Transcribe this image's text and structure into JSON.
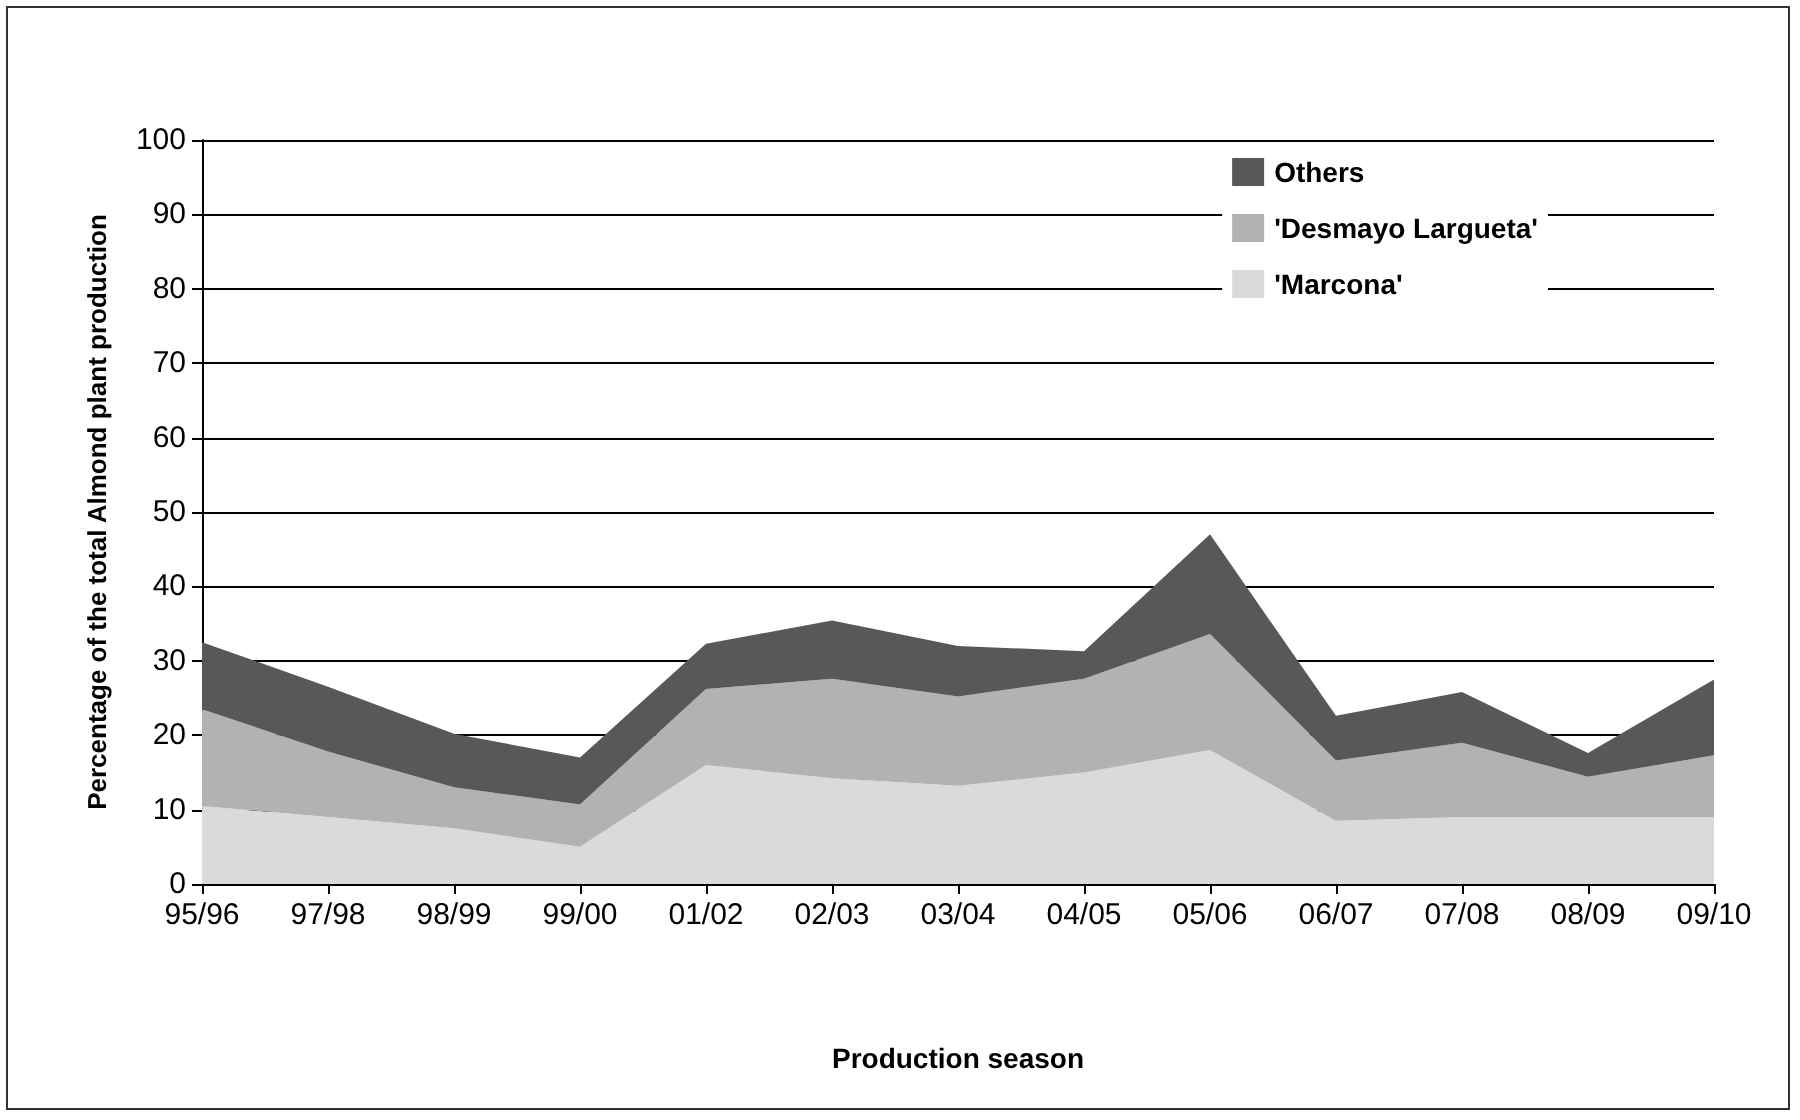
{
  "chart_data": {
    "type": "area",
    "stacked": true,
    "xlabel": "Production season",
    "ylabel": "Percentage of the total Almond plant production",
    "categories": [
      "95/96",
      "97/98",
      "98/99",
      "99/00",
      "01/02",
      "02/03",
      "03/04",
      "04/05",
      "05/06",
      "06/07",
      "07/08",
      "08/09",
      "09/10"
    ],
    "series": [
      {
        "name": "'Marcona'",
        "color": "#d9dadc",
        "values": [
          10.5,
          9,
          7.5,
          5,
          16,
          14.2,
          13.2,
          15,
          18,
          8.5,
          9,
          9,
          9
        ]
      },
      {
        "name": "'Desmayo Largueta'",
        "color": "#b1b2b4",
        "values": [
          13,
          8.8,
          5.5,
          5.7,
          10.2,
          13.4,
          12,
          12.6,
          15.6,
          8.1,
          10,
          5.4,
          8.3
        ]
      },
      {
        "name": "Others",
        "color": "#58585a",
        "values": [
          9,
          8.7,
          7.2,
          6.3,
          6.1,
          7.8,
          6.8,
          3.7,
          13.4,
          6,
          6.8,
          3.2,
          10.2
        ]
      }
    ],
    "ylim": [
      0,
      100
    ],
    "yticks": [
      0,
      10,
      20,
      30,
      40,
      50,
      60,
      70,
      80,
      90,
      100
    ],
    "grid": "y",
    "legend": "top right"
  }
}
